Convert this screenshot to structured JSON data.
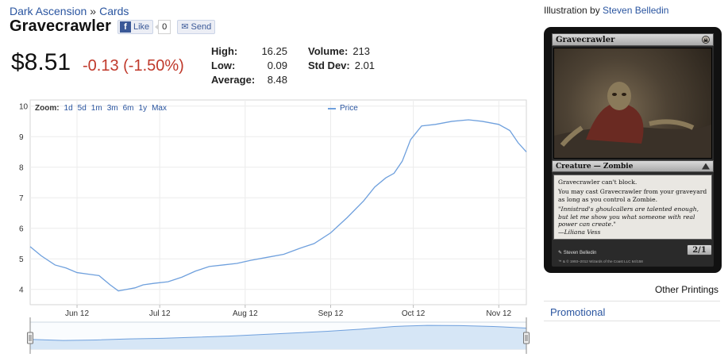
{
  "breadcrumb": {
    "set": "Dark Ascension",
    "separator": "»",
    "section": "Cards"
  },
  "card": {
    "name": "Gravecrawler",
    "like_label": "Like",
    "like_count": "0",
    "send_label": "Send"
  },
  "price": {
    "current": "$8.51",
    "change": "-0.13 (-1.50%)"
  },
  "stats": {
    "high_label": "High:",
    "high": "16.25",
    "low_label": "Low:",
    "low": "0.09",
    "avg_label": "Average:",
    "avg": "8.48",
    "volume_label": "Volume:",
    "volume": "213",
    "stddev_label": "Std Dev:",
    "stddev": "2.01"
  },
  "zoom": {
    "label": "Zoom:",
    "options": [
      "1d",
      "5d",
      "1m",
      "3m",
      "6m",
      "1y",
      "Max"
    ]
  },
  "legend_label": "Price",
  "chart_data": {
    "type": "line",
    "title": "",
    "xlabel": "",
    "ylabel": "",
    "ylim": [
      3.5,
      10.2
    ],
    "yticks": [
      4,
      5,
      6,
      7,
      8,
      9,
      10
    ],
    "xticks": [
      "Jun 12",
      "Jul 12",
      "Aug 12",
      "Sep 12",
      "Oct 12",
      "Nov 12"
    ],
    "x_range": [
      "2012-05-26",
      "2012-11-22"
    ],
    "grid": true,
    "colors": {
      "line": "#6fa0dd",
      "grid": "#ececec",
      "navigator_fill": "#d6e6f6"
    },
    "series": [
      {
        "name": "Price",
        "x": [
          "2012-05-26",
          "2012-05-30",
          "2012-06-04",
          "2012-06-08",
          "2012-06-12",
          "2012-06-16",
          "2012-06-20",
          "2012-06-24",
          "2012-06-27",
          "2012-06-30",
          "2012-07-03",
          "2012-07-06",
          "2012-07-10",
          "2012-07-15",
          "2012-07-20",
          "2012-07-25",
          "2012-07-30",
          "2012-08-04",
          "2012-08-09",
          "2012-08-14",
          "2012-08-20",
          "2012-08-26",
          "2012-09-01",
          "2012-09-06",
          "2012-09-12",
          "2012-09-18",
          "2012-09-24",
          "2012-09-28",
          "2012-10-02",
          "2012-10-05",
          "2012-10-08",
          "2012-10-11",
          "2012-10-15",
          "2012-10-20",
          "2012-10-26",
          "2012-11-01",
          "2012-11-06",
          "2012-11-12",
          "2012-11-16",
          "2012-11-19",
          "2012-11-22"
        ],
        "values": [
          5.4,
          5.1,
          4.8,
          4.7,
          4.55,
          4.5,
          4.45,
          4.15,
          3.95,
          4.0,
          4.05,
          4.15,
          4.2,
          4.25,
          4.4,
          4.6,
          4.75,
          4.8,
          4.85,
          4.95,
          5.05,
          5.15,
          5.35,
          5.5,
          5.85,
          6.35,
          6.9,
          7.35,
          7.65,
          7.8,
          8.2,
          8.9,
          9.35,
          9.4,
          9.5,
          9.55,
          9.5,
          9.4,
          9.2,
          8.8,
          8.5
        ]
      }
    ],
    "navigator": {
      "values": [
        1.8,
        1.6,
        1.7,
        1.9,
        2.0,
        2.2,
        2.4,
        2.7,
        3.0,
        3.3,
        3.7,
        4.2,
        4.4,
        4.35,
        4.2,
        3.9
      ]
    }
  },
  "right_panel": {
    "illustration_prefix": "Illustration by",
    "artist": "Steven Belledin",
    "card_image": {
      "name": "Gravecrawler",
      "type_line": "Creature — Zombie",
      "rules": [
        "Gravecrawler can't block.",
        "You may cast Gravecrawler from your graveyard as long as you control a Zombie."
      ],
      "flavor": "\"Innistrad's ghoulcallers are talented enough, but let me show you what someone with real power can create.\"",
      "flavor_attribution": "—Liliana Vess",
      "pt": "2/1",
      "credit": "Steven Belledin",
      "legal": "™ & © 1993–2012 Wizards of the Coast LLC 64/158"
    },
    "other_printings_label": "Other Printings",
    "printings": [
      "Promotional"
    ]
  }
}
